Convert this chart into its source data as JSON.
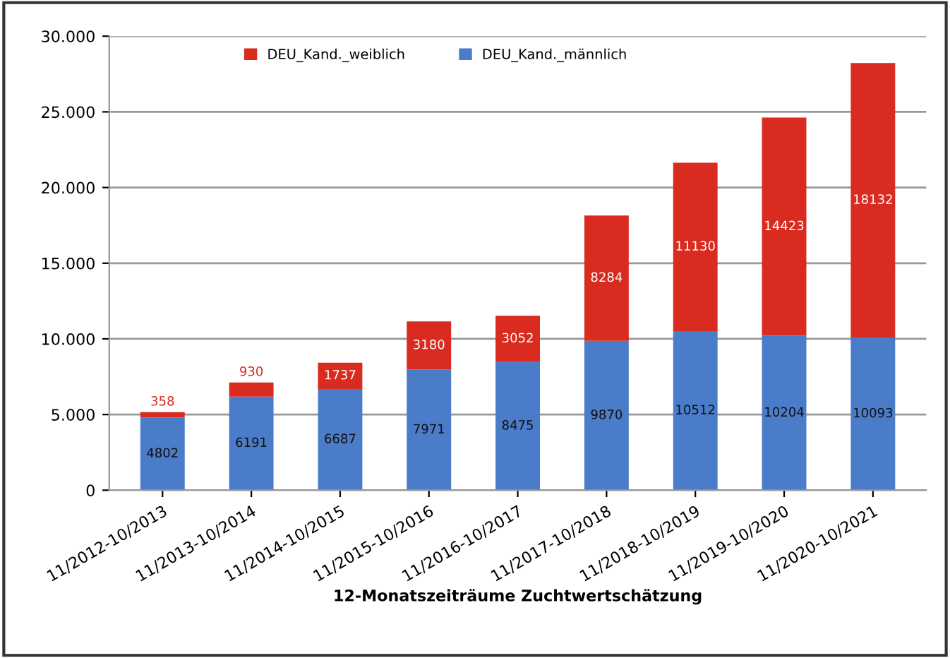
{
  "chart_data": {
    "type": "bar",
    "stacked": true,
    "xlabel": "12-Monatszeiträume Zuchtwertschätzung",
    "categories": [
      "11/2012-10/2013",
      "11/2013-10/2014",
      "11/2014-10/2015",
      "11/2015-10/2016",
      "11/2016-10/2017",
      "11/2017-10/2018",
      "11/2018-10/2019",
      "11/2019-10/2020",
      "11/2020-10/2021"
    ],
    "series": [
      {
        "name": "DEU_Kand._männlich",
        "color": "#4a7cc9",
        "values": [
          4802,
          6191,
          6687,
          7971,
          8475,
          9870,
          10512,
          10204,
          10093
        ]
      },
      {
        "name": "DEU_Kand._weiblich",
        "color": "#d92b20",
        "values": [
          358,
          930,
          1737,
          3180,
          3052,
          8284,
          11130,
          14423,
          18132
        ]
      }
    ],
    "ylim": [
      0,
      30000
    ],
    "yticks": [
      {
        "value": 0,
        "label": "0"
      },
      {
        "value": 5000,
        "label": "5.000"
      },
      {
        "value": 10000,
        "label": "10.000"
      },
      {
        "value": 15000,
        "label": "15.000"
      },
      {
        "value": 20000,
        "label": "20.000"
      },
      {
        "value": 25000,
        "label": "25.000"
      },
      {
        "value": 30000,
        "label": "30.000"
      }
    ],
    "grid": "y",
    "legend": "top",
    "data_labels": true
  }
}
